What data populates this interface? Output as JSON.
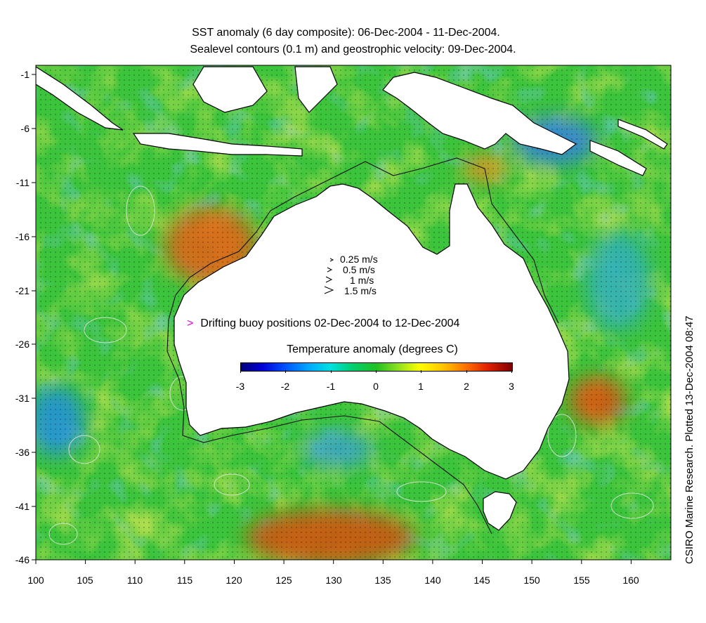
{
  "titles": {
    "line1": "SST anomaly (6 day composite): 06-Dec-2004 - 11-Dec-2004.",
    "line2": "Sealevel contours (0.1 m) and geostrophic velocity: 09-Dec-2004."
  },
  "credit": "CSIRO Marine Research. Plotted 13-Dec-2004 08:47",
  "axes": {
    "x_ticks": [
      "100",
      "105",
      "110",
      "115",
      "120",
      "125",
      "130",
      "135",
      "140",
      "145",
      "150",
      "155",
      "160"
    ],
    "y_ticks": [
      "-1",
      "-6",
      "-11",
      "-16",
      "-21",
      "-26",
      "-31",
      "-36",
      "-41",
      "-46"
    ],
    "lon_range": [
      100,
      164
    ],
    "lat_range": [
      -46,
      0
    ]
  },
  "velocity_legend": [
    "0.25 m/s",
    "0.5 m/s",
    "1 m/s",
    "1.5 m/s"
  ],
  "buoy_legend": {
    "symbol": ">",
    "label": "Drifting buoy positions 02-Dec-2004 to 12-Dec-2004",
    "color": "#e000e0"
  },
  "colorbar": {
    "title": "Temperature anomaly (degrees C)",
    "ticks": [
      "-3",
      "-2",
      "-1",
      "0",
      "1",
      "2",
      "3"
    ],
    "range": [
      -3,
      3
    ]
  },
  "colors": {
    "land": "#ffffff",
    "ocean_base": "#3cc43c",
    "warm_anomaly": "#e05010",
    "cool_anomaly": "#2080e0",
    "coastline": "#000000",
    "contours": "#e8e8e8"
  }
}
